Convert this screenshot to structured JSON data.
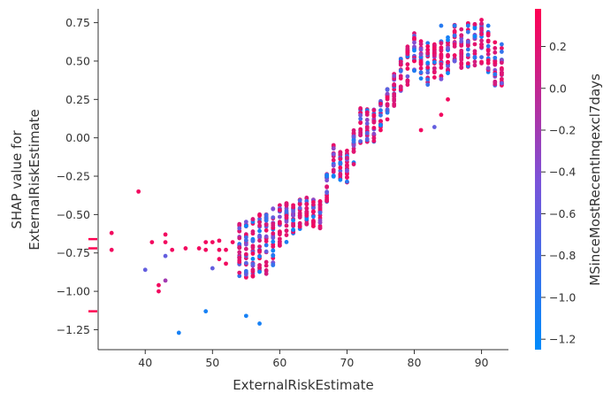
{
  "chart_data": {
    "type": "scatter",
    "title": "",
    "xlabel": "ExternalRiskEstimate",
    "ylabel": [
      "SHAP value for",
      "ExternalRiskEstimate"
    ],
    "xlim": [
      33,
      94
    ],
    "ylim": [
      -1.38,
      0.84
    ],
    "x_ticks": [
      40,
      50,
      60,
      70,
      80,
      90
    ],
    "y_ticks": [
      -1.25,
      -1.0,
      -0.75,
      -0.5,
      -0.25,
      0.0,
      0.25,
      0.5,
      0.75
    ],
    "y_tick_labels": [
      "−1.25",
      "−1.00",
      "−0.75",
      "−0.50",
      "−0.25",
      "0.00",
      "0.25",
      "0.50",
      "0.75"
    ],
    "grid": false,
    "colorbar": {
      "label": "MSinceMostRecentInqexcl7days",
      "range": [
        -1.25,
        0.38
      ],
      "ticks": [
        0.2,
        0.0,
        -0.2,
        -0.4,
        -0.6,
        -0.8,
        -1.0,
        -1.2
      ],
      "tick_labels": [
        "0.2",
        "0.0",
        "−0.2",
        "−0.4",
        "−0.6",
        "−0.8",
        "−1.0",
        "−1.2"
      ],
      "color_low": "#008bfb",
      "color_mid": "#7c52d8",
      "color_high": "#ff0052"
    },
    "rug_marks_y": [
      -0.66,
      -0.72,
      -1.13
    ],
    "trend": [
      [
        38,
        -0.68
      ],
      [
        50,
        -0.72
      ],
      [
        55,
        -0.72
      ],
      [
        58,
        -0.7
      ],
      [
        60,
        -0.58
      ],
      [
        62,
        -0.53
      ],
      [
        64,
        -0.47
      ],
      [
        66,
        -0.5
      ],
      [
        68,
        -0.15
      ],
      [
        70,
        -0.2
      ],
      [
        72,
        0.08
      ],
      [
        74,
        0.08
      ],
      [
        76,
        0.22
      ],
      [
        78,
        0.4
      ],
      [
        80,
        0.55
      ],
      [
        82,
        0.48
      ],
      [
        84,
        0.5
      ],
      [
        86,
        0.6
      ],
      [
        88,
        0.6
      ],
      [
        90,
        0.62
      ],
      [
        92,
        0.48
      ]
    ],
    "spread": [
      [
        54,
        0.18
      ],
      [
        58,
        0.22
      ],
      [
        62,
        0.1
      ],
      [
        66,
        0.09
      ],
      [
        70,
        0.12
      ],
      [
        76,
        0.1
      ],
      [
        80,
        0.14
      ],
      [
        84,
        0.14
      ],
      [
        90,
        0.15
      ]
    ],
    "sparse_points": [
      [
        35,
        -0.62,
        0.3
      ],
      [
        35,
        -0.73,
        0.3
      ],
      [
        39,
        -0.35,
        0.3
      ],
      [
        40,
        -0.86,
        -0.6
      ],
      [
        41,
        -0.68,
        0.3
      ],
      [
        42,
        -0.96,
        0.3
      ],
      [
        42,
        -1.0,
        0.3
      ],
      [
        43,
        -0.63,
        0.3
      ],
      [
        43,
        -0.68,
        0.3
      ],
      [
        43,
        -0.77,
        -0.6
      ],
      [
        43,
        -0.93,
        -0.2
      ],
      [
        44,
        -0.73,
        0.3
      ],
      [
        45,
        -1.27,
        -1.1
      ],
      [
        46,
        -0.72,
        0.3
      ],
      [
        48,
        -0.72,
        0.3
      ],
      [
        49,
        -0.68,
        0.3
      ],
      [
        49,
        -0.73,
        0.3
      ],
      [
        49,
        -1.13,
        -1.1
      ],
      [
        50,
        -0.68,
        0.3
      ],
      [
        50,
        -0.85,
        -0.6
      ],
      [
        51,
        -0.67,
        0.3
      ],
      [
        51,
        -0.73,
        0.3
      ],
      [
        51,
        -0.79,
        0.3
      ],
      [
        52,
        -0.73,
        0.3
      ],
      [
        52,
        -0.82,
        0.3
      ],
      [
        53,
        -0.68,
        0.3
      ],
      [
        55,
        -1.16,
        -1.1
      ],
      [
        57,
        -1.21,
        -1.1
      ],
      [
        84,
        0.73,
        -1.0
      ],
      [
        86,
        0.73,
        -1.0
      ],
      [
        88,
        0.73,
        -1.0
      ],
      [
        91,
        0.73,
        -1.0
      ],
      [
        81,
        0.05,
        0.3
      ],
      [
        83,
        0.07,
        -0.6
      ],
      [
        84,
        0.15,
        0.3
      ],
      [
        85,
        0.25,
        0.3
      ],
      [
        75,
        0.05,
        0.3
      ]
    ]
  }
}
